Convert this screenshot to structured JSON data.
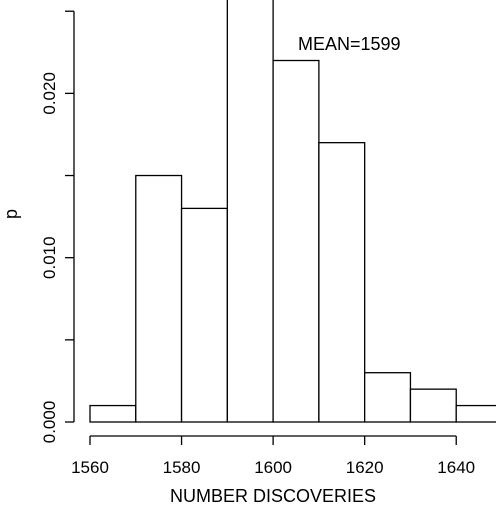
{
  "chart_data": {
    "type": "bar",
    "histogram": true,
    "xlabel": "NUMBER DISCOVERIES",
    "ylabel": "p",
    "annotation": "MEAN=1599",
    "bin_edges": [
      1560,
      1570,
      1580,
      1590,
      1600,
      1610,
      1620,
      1630,
      1640,
      1650
    ],
    "values": [
      0.001,
      0.015,
      0.013,
      0.027,
      0.022,
      0.017,
      0.003,
      0.002,
      0.001
    ],
    "xlim": [
      1560,
      1650
    ],
    "ylim": [
      0,
      0.0255
    ],
    "x_ticks": [
      1560,
      1580,
      1600,
      1620,
      1640
    ],
    "x_tick_labels": [
      "1560",
      "1580",
      "1600",
      "1620",
      "1640"
    ],
    "y_ticks": [
      0,
      0.005,
      0.01,
      0.015,
      0.02,
      0.025
    ],
    "y_tick_labels": [
      "0.000",
      "",
      "0.010",
      "",
      "0.020",
      ""
    ],
    "grid": false,
    "legend": "none"
  }
}
